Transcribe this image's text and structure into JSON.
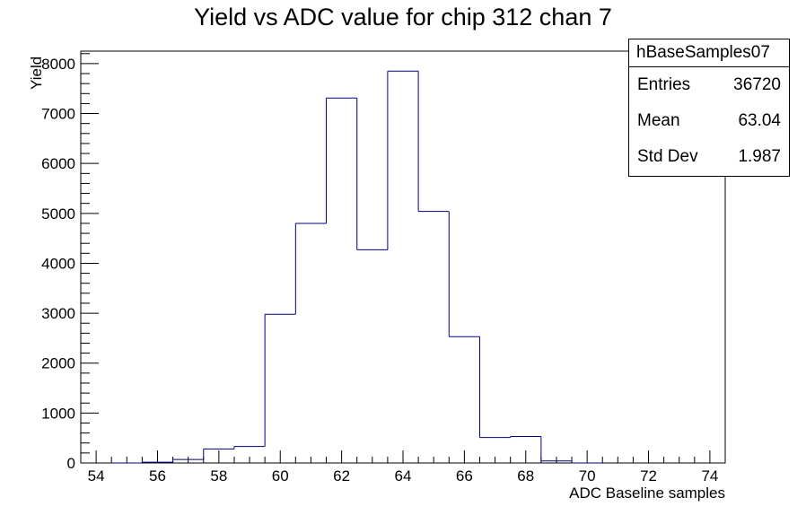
{
  "chart_data": {
    "type": "histogram",
    "title": "Yield vs ADC value for chip 312 chan 7",
    "xlabel": "ADC Baseline samples",
    "ylabel": "Yield",
    "xlim": [
      53.5,
      74.5
    ],
    "ylim": [
      0,
      8250
    ],
    "bin_width": 1,
    "x_ticks": [
      54,
      56,
      58,
      60,
      62,
      64,
      66,
      68,
      70,
      72,
      74
    ],
    "y_ticks": [
      0,
      1000,
      2000,
      3000,
      4000,
      5000,
      6000,
      7000,
      8000
    ],
    "bins": [
      {
        "x": 55,
        "value": 0
      },
      {
        "x": 56,
        "value": 15
      },
      {
        "x": 57,
        "value": 70
      },
      {
        "x": 58,
        "value": 280
      },
      {
        "x": 59,
        "value": 330
      },
      {
        "x": 60,
        "value": 2980
      },
      {
        "x": 61,
        "value": 4800
      },
      {
        "x": 62,
        "value": 7310
      },
      {
        "x": 63,
        "value": 4270
      },
      {
        "x": 64,
        "value": 7850
      },
      {
        "x": 65,
        "value": 5040
      },
      {
        "x": 66,
        "value": 2530
      },
      {
        "x": 67,
        "value": 510
      },
      {
        "x": 68,
        "value": 530
      },
      {
        "x": 69,
        "value": 40
      },
      {
        "x": 70,
        "value": 0
      }
    ],
    "line_color": "#000080",
    "grid": false,
    "legend": "none"
  },
  "stats": {
    "name": "hBaseSamples07",
    "entries_label": "Entries",
    "entries_value": "36720",
    "mean_label": "Mean",
    "mean_value": "63.04",
    "stddev_label": "Std Dev",
    "stddev_value": "1.987"
  }
}
